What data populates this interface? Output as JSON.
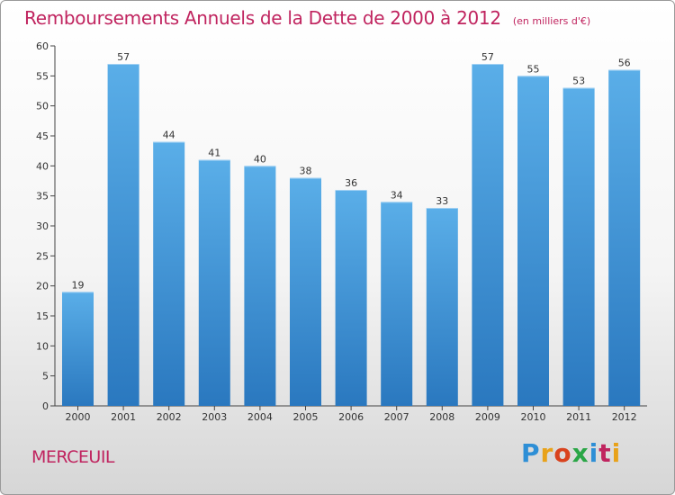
{
  "chart_data": {
    "type": "bar",
    "title": "Remboursements Annuels de la Dette de 2000 à 2012",
    "subtitle": "(en milliers d'€)",
    "categories": [
      "2000",
      "2001",
      "2002",
      "2003",
      "2004",
      "2005",
      "2006",
      "2007",
      "2008",
      "2009",
      "2010",
      "2011",
      "2012"
    ],
    "values": [
      19,
      57,
      44,
      41,
      40,
      38,
      36,
      34,
      33,
      57,
      55,
      53,
      56
    ],
    "xlabel": "",
    "ylabel": "",
    "ylim": [
      0,
      60
    ],
    "yticks": [
      0,
      5,
      10,
      15,
      20,
      25,
      30,
      35,
      40,
      45,
      50,
      55,
      60
    ],
    "grid": false,
    "bar_color": "#3d95d8"
  },
  "footer": {
    "place": "MERCEUIL",
    "brand": "Proxiti",
    "brand_colors": [
      "#2e8fd6",
      "#e8a21a",
      "#d9431e",
      "#2aa646",
      "#2e8fd6",
      "#c0245f",
      "#e8a21a"
    ]
  }
}
